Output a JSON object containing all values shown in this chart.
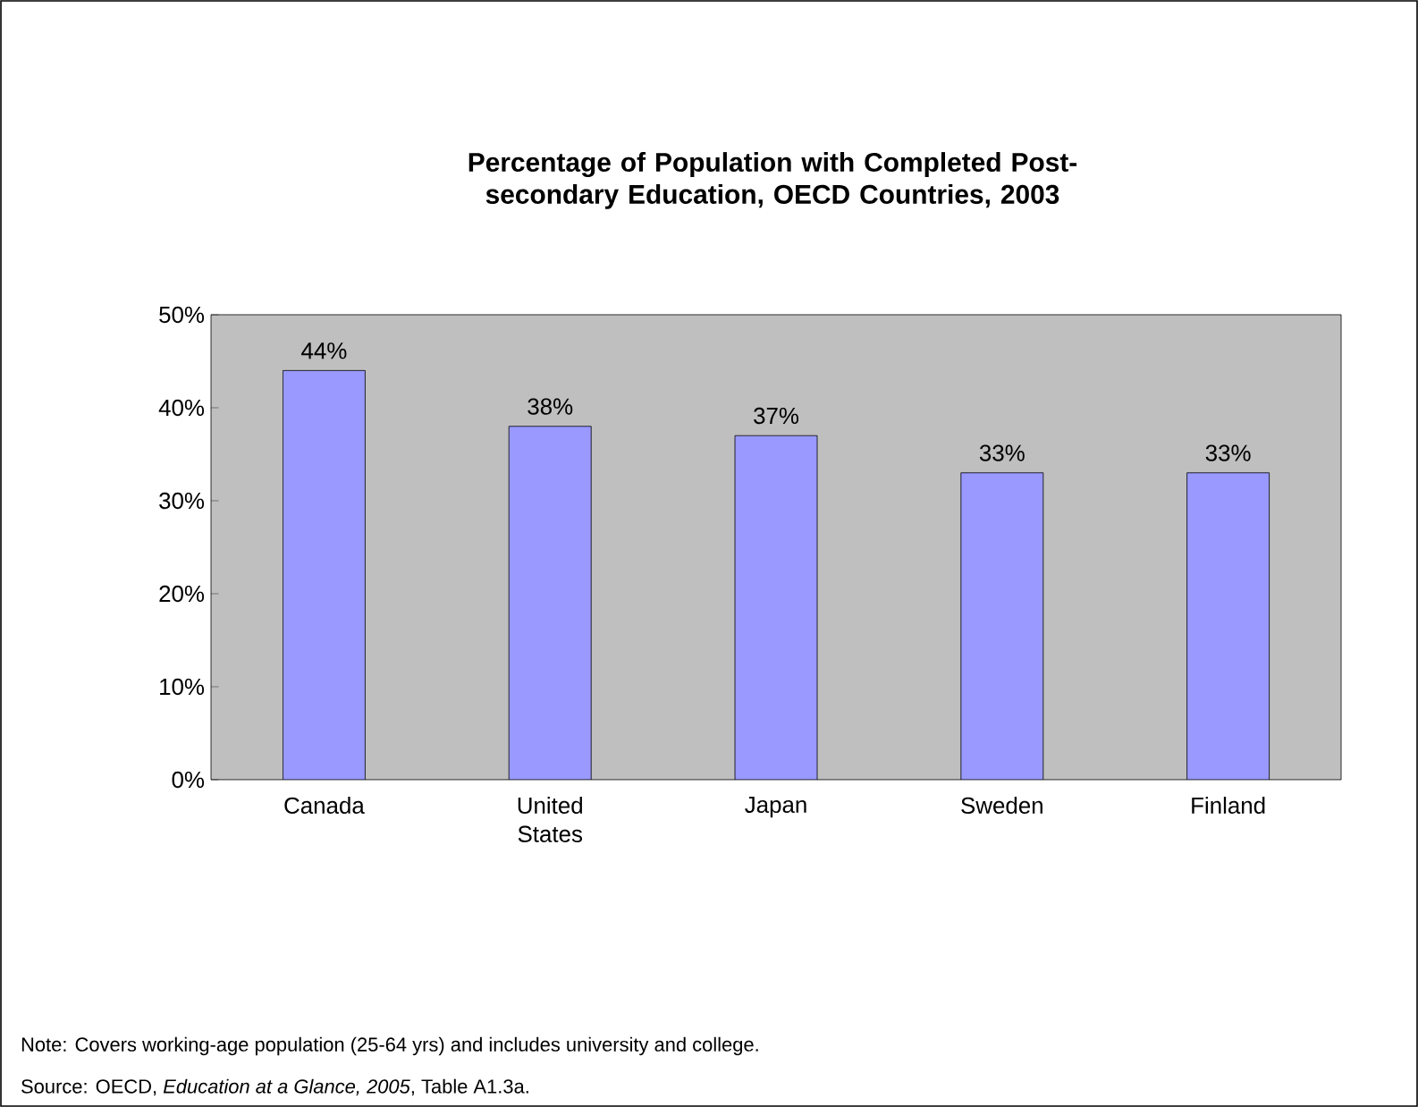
{
  "chart_data": {
    "type": "bar",
    "title": "Percentage of Population with Completed Post-secondary Education, OECD Countries, 2003",
    "categories": [
      "Canada",
      "United States",
      "Japan",
      "Sweden",
      "Finland"
    ],
    "values": [
      44,
      38,
      37,
      33,
      33
    ],
    "value_labels": [
      "44%",
      "38%",
      "37%",
      "33%",
      "33%"
    ],
    "color": "#9999ff",
    "ylim": [
      0,
      50
    ],
    "yticks": [
      {
        "value": 0,
        "label": "0%"
      },
      {
        "value": 10,
        "label": "10%"
      },
      {
        "value": 20,
        "label": "20%"
      },
      {
        "value": 30,
        "label": "30%"
      },
      {
        "value": 40,
        "label": "40%"
      },
      {
        "value": 50,
        "label": "50%"
      }
    ],
    "grid": false,
    "annotations": [
      "Note: Covers working-age population (25-64 yrs) and includes university and college.",
      "Source: OECD, *Education at a Glance, 2005*, Table A1.3a."
    ]
  }
}
